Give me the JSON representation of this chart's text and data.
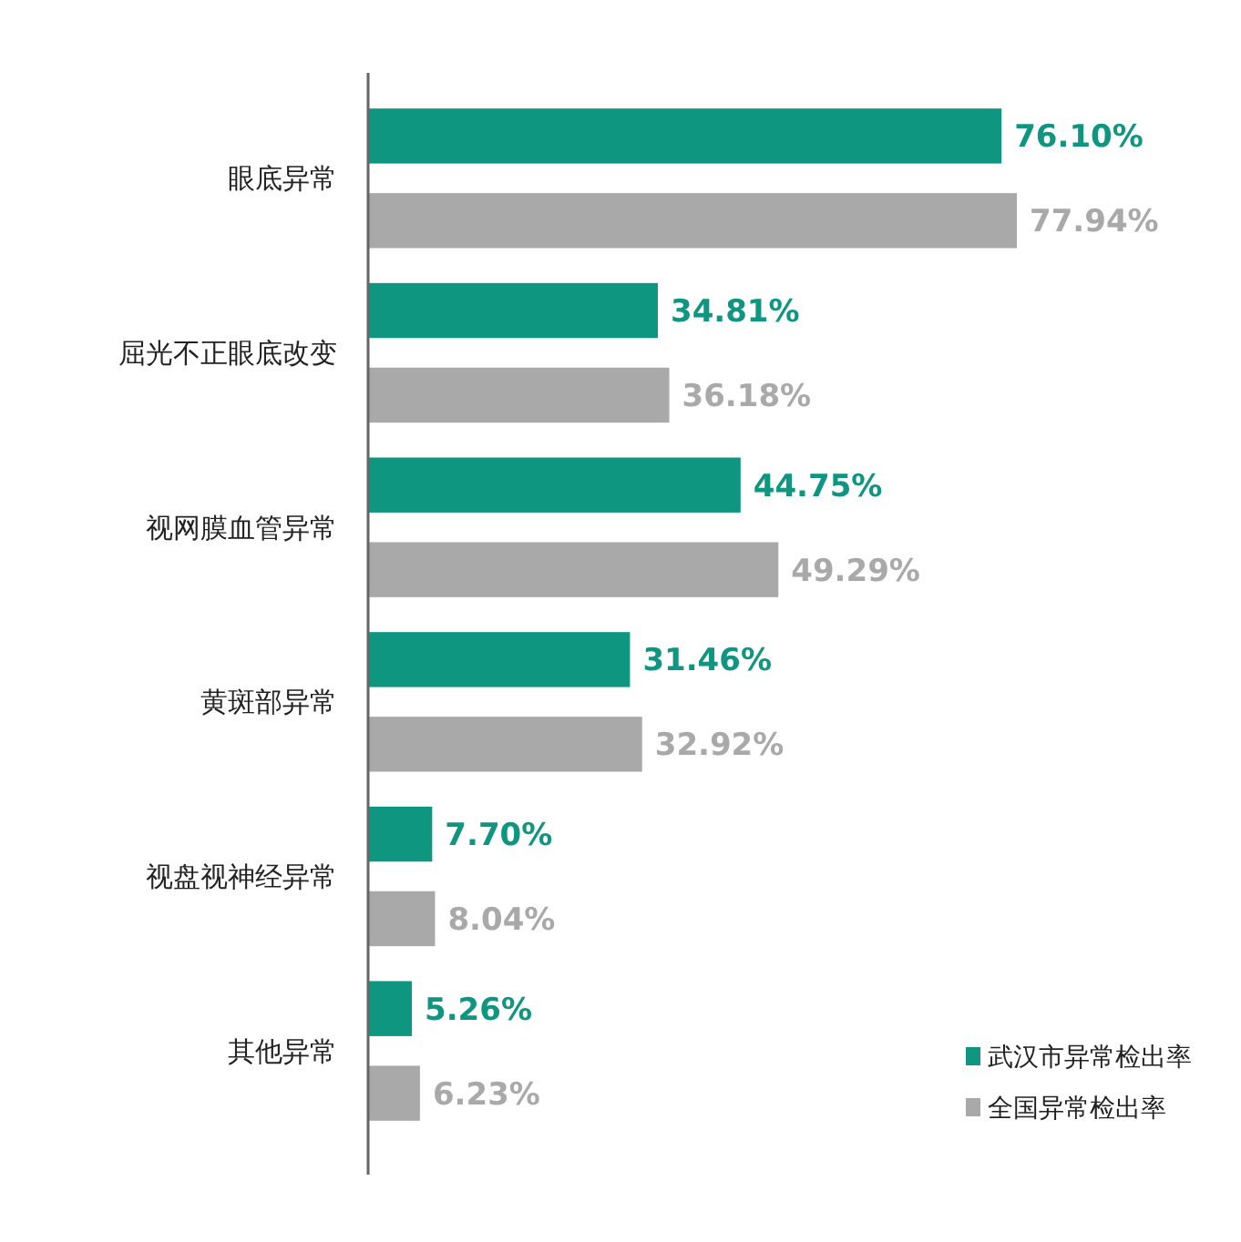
{
  "chart_data": {
    "type": "bar",
    "orientation": "horizontal",
    "categories": [
      "眼底异常",
      "屈光不正眼底改变",
      "视网膜血管异常",
      "黄斑部异常",
      "视盘视神经异常",
      "其他异常"
    ],
    "series": [
      {
        "name": "武汉市异常检出率",
        "color": "#0e9680",
        "values": [
          76.1,
          34.81,
          44.75,
          31.46,
          7.7,
          5.26
        ],
        "value_labels": [
          "76.10%",
          "34.81%",
          "44.75%",
          "31.46%",
          "7.70%",
          "5.26%"
        ]
      },
      {
        "name": "全国异常检出率",
        "color": "#a9a9a9",
        "values": [
          77.94,
          36.18,
          49.29,
          32.92,
          8.04,
          6.23
        ],
        "value_labels": [
          "77.94%",
          "36.18%",
          "49.29%",
          "32.92%",
          "8.04%",
          "6.23%"
        ]
      }
    ],
    "tick_labels": "y",
    "legend": "bottom right"
  }
}
